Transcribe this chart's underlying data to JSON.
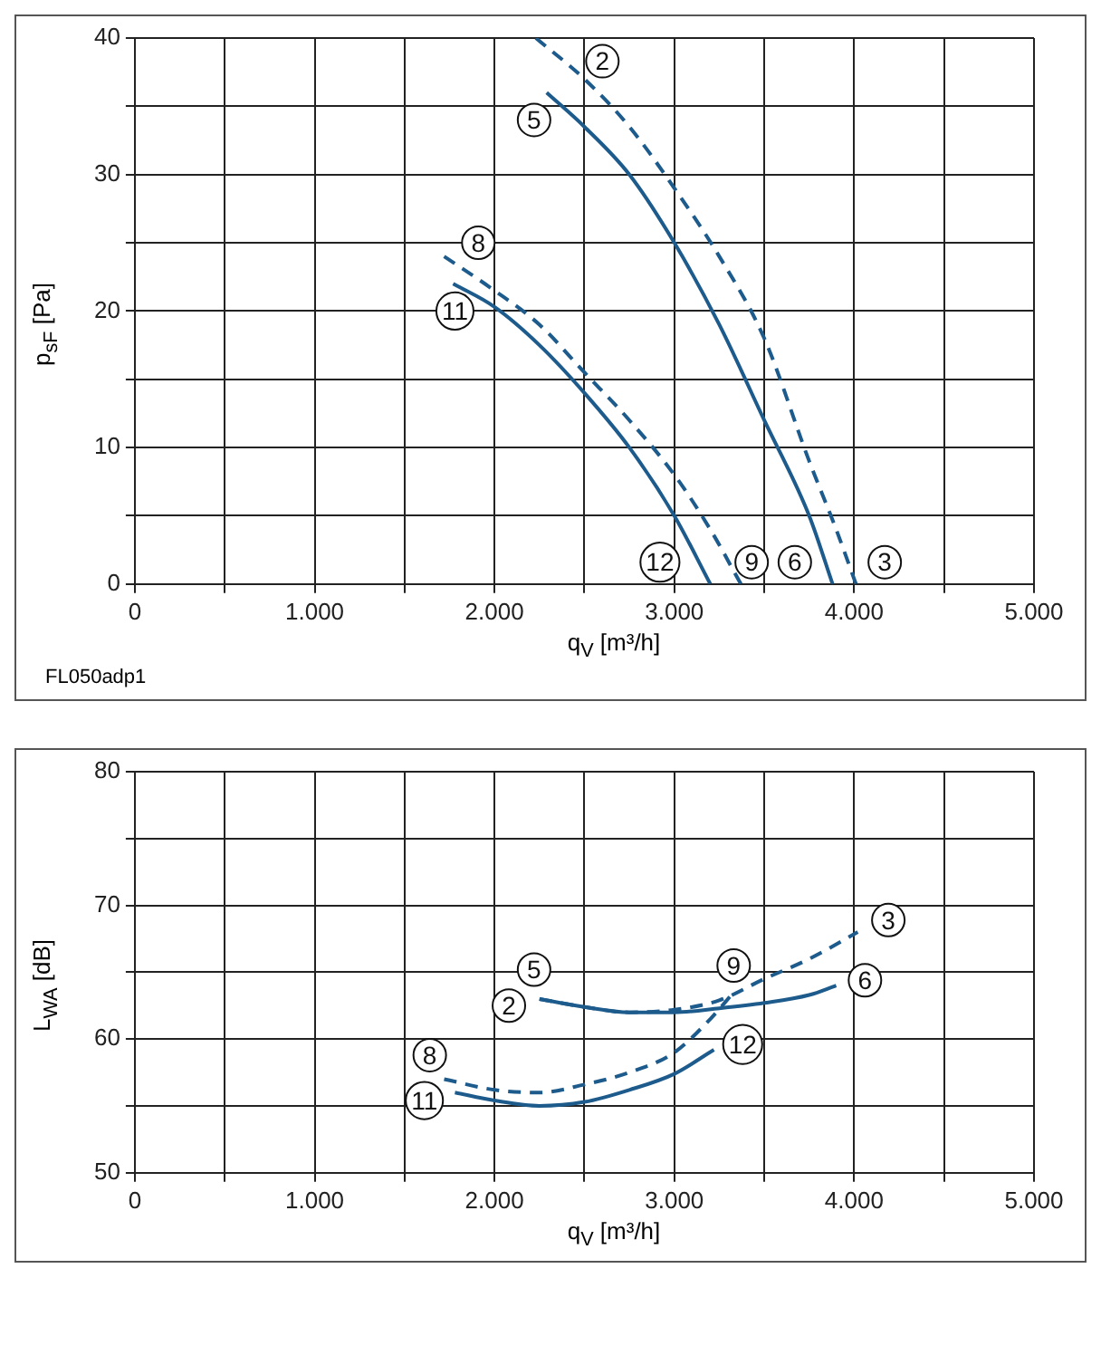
{
  "chart_data": [
    {
      "type": "line",
      "xlabel": "q$_{V}$ [m³/h]",
      "ylabel": "p$_{sF}$ [Pa]",
      "xlim": [
        0,
        5000
      ],
      "ylim": [
        0,
        40
      ],
      "xticks": [
        0,
        {
          "value": 500,
          "label": null
        },
        {
          "value": 1000,
          "label": "1.000"
        },
        {
          "value": 1500,
          "label": null
        },
        {
          "value": 2000,
          "label": "2.000"
        },
        {
          "value": 2500,
          "label": null
        },
        {
          "value": 3000,
          "label": "3.000"
        },
        {
          "value": 3500,
          "label": null
        },
        {
          "value": 4000,
          "label": "4.000"
        },
        {
          "value": 4500,
          "label": null
        },
        {
          "value": 5000,
          "label": "5.000"
        }
      ],
      "yticks": [
        0,
        {
          "value": 5,
          "label": null
        },
        10,
        {
          "value": 15,
          "label": null
        },
        20,
        {
          "value": 25,
          "label": null
        },
        30,
        {
          "value": 35,
          "label": null
        },
        40
      ],
      "grid": true,
      "series": [
        {
          "color": "#1d5b8c",
          "line_style": "dashed",
          "x": [
            2230,
            2500,
            2750,
            3000,
            3250,
            3500,
            3750,
            3900,
            4010
          ],
          "values": [
            40,
            37,
            33.5,
            29,
            24,
            18,
            9,
            4,
            0
          ]
        },
        {
          "color": "#1d5b8c",
          "line_style": "solid",
          "x": [
            2290,
            2500,
            2750,
            3000,
            3250,
            3500,
            3750,
            3880
          ],
          "values": [
            36,
            33.5,
            30,
            25,
            19,
            12,
            5,
            0
          ]
        },
        {
          "color": "#1d5b8c",
          "line_style": "dashed",
          "x": [
            1720,
            2000,
            2250,
            2500,
            2750,
            3000,
            3200,
            3370
          ],
          "values": [
            24,
            21.5,
            19,
            15.5,
            12,
            8,
            4,
            0
          ]
        },
        {
          "color": "#1d5b8c",
          "line_style": "solid",
          "x": [
            1770,
            2000,
            2250,
            2500,
            2750,
            3000,
            3200
          ],
          "values": [
            22,
            20.3,
            17.5,
            14,
            10,
            5,
            0
          ]
        }
      ],
      "annotations": [
        {
          "text": "2",
          "x": 2600,
          "y": 38.3
        },
        {
          "text": "5",
          "x": 2220,
          "y": 34
        },
        {
          "text": "8",
          "x": 1910,
          "y": 25
        },
        {
          "text": "11",
          "x": 1780,
          "y": 20
        },
        {
          "text": "12",
          "x": 2920,
          "y": 1.6
        },
        {
          "text": "9",
          "x": 3430,
          "y": 1.6
        },
        {
          "text": "6",
          "x": 3670,
          "y": 1.6
        },
        {
          "text": "3",
          "x": 4170,
          "y": 1.6
        },
        "FL050adp1"
      ]
    },
    {
      "type": "line",
      "xlabel": "q$_{V}$ [m³/h]",
      "ylabel": "L$_{WA}$ [dB]",
      "xlim": [
        0,
        5000
      ],
      "ylim": [
        50,
        80
      ],
      "xticks": [
        0,
        {
          "value": 500,
          "label": null
        },
        {
          "value": 1000,
          "label": "1.000"
        },
        {
          "value": 1500,
          "label": null
        },
        {
          "value": 2000,
          "label": "2.000"
        },
        {
          "value": 2500,
          "label": null
        },
        {
          "value": 3000,
          "label": "3.000"
        },
        {
          "value": 3500,
          "label": null
        },
        {
          "value": 4000,
          "label": "4.000"
        },
        {
          "value": 4500,
          "label": null
        },
        {
          "value": 5000,
          "label": "5.000"
        }
      ],
      "yticks": [
        50,
        {
          "value": 55,
          "label": null
        },
        60,
        {
          "value": 65,
          "label": null
        },
        70,
        {
          "value": 75,
          "label": null
        },
        80
      ],
      "grid": true,
      "series": [
        {
          "color": "#1d5b8c",
          "line_style": "dashed",
          "x": [
            2250,
            2500,
            2750,
            3000,
            3250,
            3500,
            3750,
            4020
          ],
          "values": [
            63,
            62.4,
            62,
            62.2,
            62.9,
            64.5,
            66,
            68
          ]
        },
        {
          "color": "#1d5b8c",
          "line_style": "solid",
          "x": [
            2250,
            2500,
            2750,
            3000,
            3250,
            3500,
            3750,
            3900
          ],
          "values": [
            63,
            62.4,
            62,
            62,
            62.3,
            62.7,
            63.3,
            64
          ]
        },
        {
          "color": "#1d5b8c",
          "line_style": "dashed",
          "x": [
            1720,
            2000,
            2250,
            2500,
            2750,
            3000,
            3200,
            3330
          ],
          "values": [
            57,
            56.2,
            56,
            56.6,
            57.5,
            59,
            61.5,
            63.5
          ]
        },
        {
          "color": "#1d5b8c",
          "line_style": "solid",
          "x": [
            1780,
            2000,
            2250,
            2500,
            2750,
            3000,
            3220
          ],
          "values": [
            56,
            55.4,
            55,
            55.3,
            56.2,
            57.4,
            59.2
          ]
        }
      ],
      "annotations": [
        {
          "text": "3",
          "x": 4190,
          "y": 68.9
        },
        {
          "text": "9",
          "x": 3330,
          "y": 65.5
        },
        {
          "text": "6",
          "x": 4060,
          "y": 64.4
        },
        {
          "text": "5",
          "x": 2220,
          "y": 65.2
        },
        {
          "text": "2",
          "x": 2080,
          "y": 62.5
        },
        {
          "text": "8",
          "x": 1640,
          "y": 58.8
        },
        {
          "text": "12",
          "x": 3380,
          "y": 59.6
        },
        {
          "text": "11",
          "x": 1610,
          "y": 55.4
        }
      ]
    }
  ]
}
